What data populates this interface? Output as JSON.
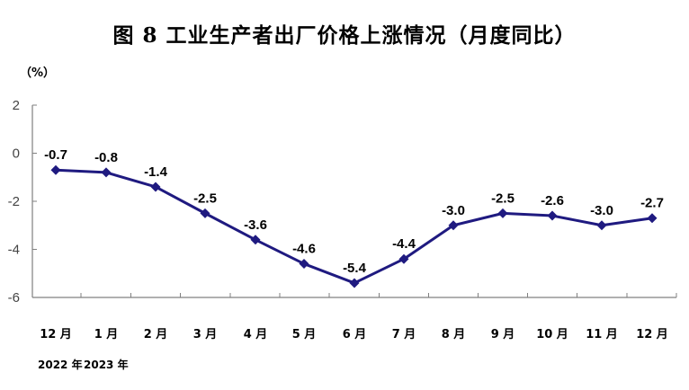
{
  "chart_data": {
    "type": "line",
    "title": "图 8    工业生产者出厂价格上涨情况（月度同比）",
    "ylabel": "（%）",
    "ylim": [
      -6,
      2
    ],
    "yticks": [
      2,
      0,
      -2,
      -4,
      -6
    ],
    "categories": [
      "12 月",
      "1 月",
      "2 月",
      "3 月",
      "4 月",
      "5 月",
      "6 月",
      "7 月",
      "8 月",
      "9 月",
      "10 月",
      "11 月",
      "12 月"
    ],
    "values": [
      -0.7,
      -0.8,
      -1.4,
      -2.5,
      -3.6,
      -4.6,
      -5.4,
      -4.4,
      -3.0,
      -2.5,
      -2.6,
      -3.0,
      -2.7
    ],
    "data_labels": [
      "-0.7",
      "-0.8",
      "-1.4",
      "-2.5",
      "-3.6",
      "-4.6",
      "-5.4",
      "-4.4",
      "-3.0",
      "-2.5",
      "-2.6",
      "-3.0",
      "-2.7"
    ],
    "year_labels": [
      "2022 年",
      "2023 年"
    ],
    "line_color": "#1F1A80",
    "axis_color": "#808080",
    "grid": false,
    "legend": "none"
  }
}
